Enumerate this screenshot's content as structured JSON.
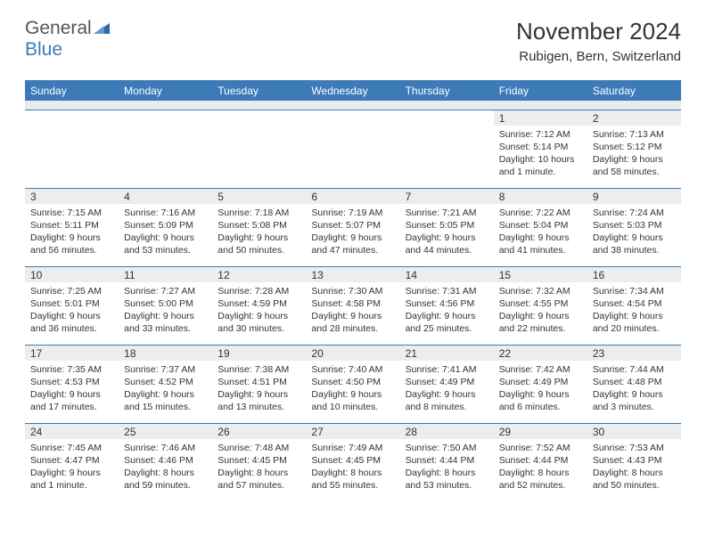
{
  "logo": {
    "text1": "General",
    "text2": "Blue"
  },
  "title": {
    "month": "November 2024",
    "location": "Rubigen, Bern, Switzerland"
  },
  "colors": {
    "header_bg": "#3c7bb8",
    "header_fg": "#ffffff",
    "daynum_bg": "#ecedef",
    "border": "#3c7bb8",
    "spacer_bg": "#e9ecef"
  },
  "day_headers": [
    "Sunday",
    "Monday",
    "Tuesday",
    "Wednesday",
    "Thursday",
    "Friday",
    "Saturday"
  ],
  "weeks": [
    [
      null,
      null,
      null,
      null,
      null,
      {
        "n": "1",
        "sunrise": "Sunrise: 7:12 AM",
        "sunset": "Sunset: 5:14 PM",
        "daylight": "Daylight: 10 hours and 1 minute."
      },
      {
        "n": "2",
        "sunrise": "Sunrise: 7:13 AM",
        "sunset": "Sunset: 5:12 PM",
        "daylight": "Daylight: 9 hours and 58 minutes."
      }
    ],
    [
      {
        "n": "3",
        "sunrise": "Sunrise: 7:15 AM",
        "sunset": "Sunset: 5:11 PM",
        "daylight": "Daylight: 9 hours and 56 minutes."
      },
      {
        "n": "4",
        "sunrise": "Sunrise: 7:16 AM",
        "sunset": "Sunset: 5:09 PM",
        "daylight": "Daylight: 9 hours and 53 minutes."
      },
      {
        "n": "5",
        "sunrise": "Sunrise: 7:18 AM",
        "sunset": "Sunset: 5:08 PM",
        "daylight": "Daylight: 9 hours and 50 minutes."
      },
      {
        "n": "6",
        "sunrise": "Sunrise: 7:19 AM",
        "sunset": "Sunset: 5:07 PM",
        "daylight": "Daylight: 9 hours and 47 minutes."
      },
      {
        "n": "7",
        "sunrise": "Sunrise: 7:21 AM",
        "sunset": "Sunset: 5:05 PM",
        "daylight": "Daylight: 9 hours and 44 minutes."
      },
      {
        "n": "8",
        "sunrise": "Sunrise: 7:22 AM",
        "sunset": "Sunset: 5:04 PM",
        "daylight": "Daylight: 9 hours and 41 minutes."
      },
      {
        "n": "9",
        "sunrise": "Sunrise: 7:24 AM",
        "sunset": "Sunset: 5:03 PM",
        "daylight": "Daylight: 9 hours and 38 minutes."
      }
    ],
    [
      {
        "n": "10",
        "sunrise": "Sunrise: 7:25 AM",
        "sunset": "Sunset: 5:01 PM",
        "daylight": "Daylight: 9 hours and 36 minutes."
      },
      {
        "n": "11",
        "sunrise": "Sunrise: 7:27 AM",
        "sunset": "Sunset: 5:00 PM",
        "daylight": "Daylight: 9 hours and 33 minutes."
      },
      {
        "n": "12",
        "sunrise": "Sunrise: 7:28 AM",
        "sunset": "Sunset: 4:59 PM",
        "daylight": "Daylight: 9 hours and 30 minutes."
      },
      {
        "n": "13",
        "sunrise": "Sunrise: 7:30 AM",
        "sunset": "Sunset: 4:58 PM",
        "daylight": "Daylight: 9 hours and 28 minutes."
      },
      {
        "n": "14",
        "sunrise": "Sunrise: 7:31 AM",
        "sunset": "Sunset: 4:56 PM",
        "daylight": "Daylight: 9 hours and 25 minutes."
      },
      {
        "n": "15",
        "sunrise": "Sunrise: 7:32 AM",
        "sunset": "Sunset: 4:55 PM",
        "daylight": "Daylight: 9 hours and 22 minutes."
      },
      {
        "n": "16",
        "sunrise": "Sunrise: 7:34 AM",
        "sunset": "Sunset: 4:54 PM",
        "daylight": "Daylight: 9 hours and 20 minutes."
      }
    ],
    [
      {
        "n": "17",
        "sunrise": "Sunrise: 7:35 AM",
        "sunset": "Sunset: 4:53 PM",
        "daylight": "Daylight: 9 hours and 17 minutes."
      },
      {
        "n": "18",
        "sunrise": "Sunrise: 7:37 AM",
        "sunset": "Sunset: 4:52 PM",
        "daylight": "Daylight: 9 hours and 15 minutes."
      },
      {
        "n": "19",
        "sunrise": "Sunrise: 7:38 AM",
        "sunset": "Sunset: 4:51 PM",
        "daylight": "Daylight: 9 hours and 13 minutes."
      },
      {
        "n": "20",
        "sunrise": "Sunrise: 7:40 AM",
        "sunset": "Sunset: 4:50 PM",
        "daylight": "Daylight: 9 hours and 10 minutes."
      },
      {
        "n": "21",
        "sunrise": "Sunrise: 7:41 AM",
        "sunset": "Sunset: 4:49 PM",
        "daylight": "Daylight: 9 hours and 8 minutes."
      },
      {
        "n": "22",
        "sunrise": "Sunrise: 7:42 AM",
        "sunset": "Sunset: 4:49 PM",
        "daylight": "Daylight: 9 hours and 6 minutes."
      },
      {
        "n": "23",
        "sunrise": "Sunrise: 7:44 AM",
        "sunset": "Sunset: 4:48 PM",
        "daylight": "Daylight: 9 hours and 3 minutes."
      }
    ],
    [
      {
        "n": "24",
        "sunrise": "Sunrise: 7:45 AM",
        "sunset": "Sunset: 4:47 PM",
        "daylight": "Daylight: 9 hours and 1 minute."
      },
      {
        "n": "25",
        "sunrise": "Sunrise: 7:46 AM",
        "sunset": "Sunset: 4:46 PM",
        "daylight": "Daylight: 8 hours and 59 minutes."
      },
      {
        "n": "26",
        "sunrise": "Sunrise: 7:48 AM",
        "sunset": "Sunset: 4:45 PM",
        "daylight": "Daylight: 8 hours and 57 minutes."
      },
      {
        "n": "27",
        "sunrise": "Sunrise: 7:49 AM",
        "sunset": "Sunset: 4:45 PM",
        "daylight": "Daylight: 8 hours and 55 minutes."
      },
      {
        "n": "28",
        "sunrise": "Sunrise: 7:50 AM",
        "sunset": "Sunset: 4:44 PM",
        "daylight": "Daylight: 8 hours and 53 minutes."
      },
      {
        "n": "29",
        "sunrise": "Sunrise: 7:52 AM",
        "sunset": "Sunset: 4:44 PM",
        "daylight": "Daylight: 8 hours and 52 minutes."
      },
      {
        "n": "30",
        "sunrise": "Sunrise: 7:53 AM",
        "sunset": "Sunset: 4:43 PM",
        "daylight": "Daylight: 8 hours and 50 minutes."
      }
    ]
  ]
}
